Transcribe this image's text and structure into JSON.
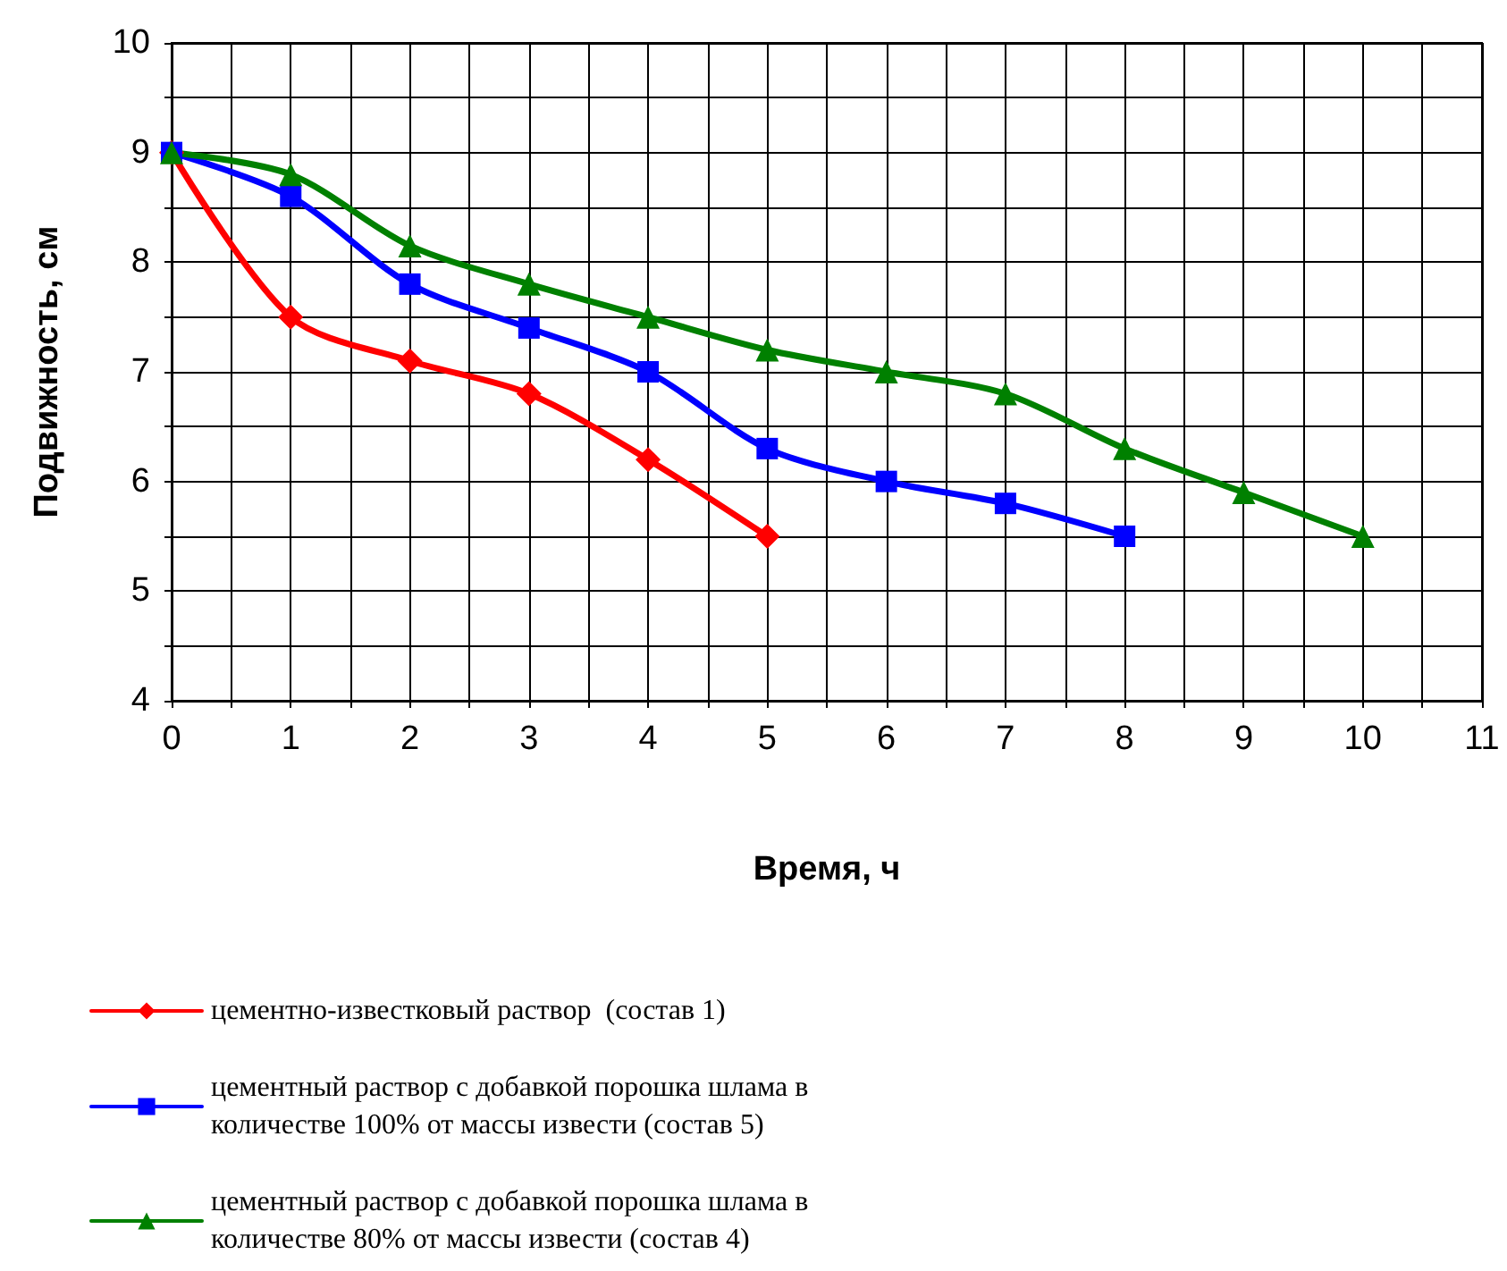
{
  "chart_data": {
    "type": "line",
    "xlabel": "Время, ч",
    "ylabel": "Подвижность, см",
    "series": [
      {
        "name": "цементно-известковый раствор  (состав 1)",
        "color": "#ff0000",
        "marker": "diamond",
        "x": [
          0,
          1,
          2,
          3,
          4,
          5
        ],
        "values": [
          9,
          7.5,
          7.1,
          6.8,
          6.2,
          5.5
        ]
      },
      {
        "name": "цементный раствор с добавкой порошка шлама в количестве 100% от массы извести (состав 5)",
        "color": "#0000ff",
        "marker": "square",
        "x": [
          0,
          1,
          2,
          3,
          4,
          5,
          6,
          7,
          8
        ],
        "values": [
          9,
          8.6,
          7.8,
          7.4,
          7.0,
          6.3,
          6.0,
          5.8,
          5.5
        ]
      },
      {
        "name": "цементный раствор с добавкой порошка шлама в количестве 80% от массы извести (состав 4)",
        "color": "#008000",
        "marker": "triangle",
        "x": [
          0,
          1,
          2,
          3,
          4,
          5,
          6,
          7,
          8,
          9,
          10
        ],
        "values": [
          9,
          8.8,
          8.15,
          7.8,
          7.5,
          7.2,
          7.0,
          6.8,
          6.3,
          5.9,
          5.5
        ]
      }
    ],
    "xlim": [
      0,
      11
    ],
    "xticks": [
      0,
      {
        "value": 0.5,
        "label": null
      },
      1,
      {
        "value": 1.5,
        "label": null
      },
      2,
      {
        "value": 2.5,
        "label": null
      },
      3,
      {
        "value": 3.5,
        "label": null
      },
      4,
      {
        "value": 4.5,
        "label": null
      },
      5,
      {
        "value": 5.5,
        "label": null
      },
      6,
      {
        "value": 6.5,
        "label": null
      },
      7,
      {
        "value": 7.5,
        "label": null
      },
      8,
      {
        "value": 8.5,
        "label": null
      },
      9,
      {
        "value": 9.5,
        "label": null
      },
      10,
      {
        "value": 10.5,
        "label": null
      },
      11
    ],
    "ylim": [
      4,
      10
    ],
    "yticks": [
      4,
      {
        "value": 4.5,
        "label": null
      },
      5,
      {
        "value": 5.5,
        "label": null
      },
      6,
      {
        "value": 6.5,
        "label": null
      },
      7,
      {
        "value": 7.5,
        "label": null
      },
      8,
      {
        "value": 8.5,
        "label": null
      },
      9,
      {
        "value": 9.5,
        "label": null
      },
      10
    ],
    "grid": true,
    "legend": "bottom",
    "line_style": "solid"
  }
}
